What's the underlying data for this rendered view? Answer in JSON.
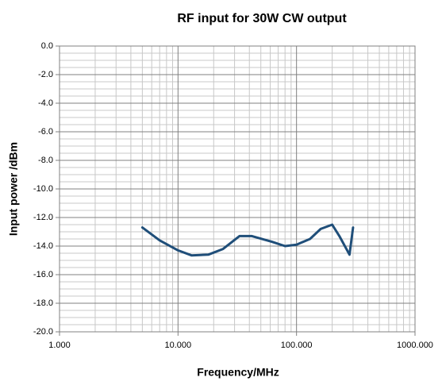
{
  "chart_data": {
    "type": "line",
    "title": "RF input for 30W CW output",
    "x_label": "Frequency/MHz",
    "y_label": "Input power /dBm",
    "x_log": true,
    "grid": true,
    "minor_grid": true,
    "xlim": [
      1,
      1000
    ],
    "xticks": [
      {
        "value": 1,
        "label": "1.000"
      },
      {
        "value": 10,
        "label": "10.000"
      },
      {
        "value": 100,
        "label": "100.000"
      },
      {
        "value": 1000,
        "label": "1000.000"
      }
    ],
    "ylim": [
      -20,
      0
    ],
    "yticks": [
      {
        "value": 0,
        "label": "0.0"
      },
      {
        "value": -2,
        "label": "-2.0"
      },
      {
        "value": -4,
        "label": "-4.0"
      },
      {
        "value": -6,
        "label": "-6.0"
      },
      {
        "value": -8,
        "label": "-8.0"
      },
      {
        "value": -10,
        "label": "-10.0"
      },
      {
        "value": -12,
        "label": "-12.0"
      },
      {
        "value": -14,
        "label": "-14.0"
      },
      {
        "value": -16,
        "label": "-16.0"
      },
      {
        "value": -18,
        "label": "-18.0"
      },
      {
        "value": -20,
        "label": "-20.0"
      }
    ],
    "x": [
      5,
      7,
      10,
      13,
      18,
      24,
      33,
      42,
      62,
      80,
      100,
      130,
      160,
      200,
      230,
      280,
      300
    ],
    "series": [
      {
        "color": "#1f4e79",
        "values": [
          -12.7,
          -13.6,
          -14.3,
          -14.65,
          -14.6,
          -14.2,
          -13.3,
          -13.3,
          -13.7,
          -14.0,
          -13.9,
          -13.5,
          -12.8,
          -12.5,
          -13.3,
          -14.6,
          -12.7
        ]
      }
    ]
  }
}
